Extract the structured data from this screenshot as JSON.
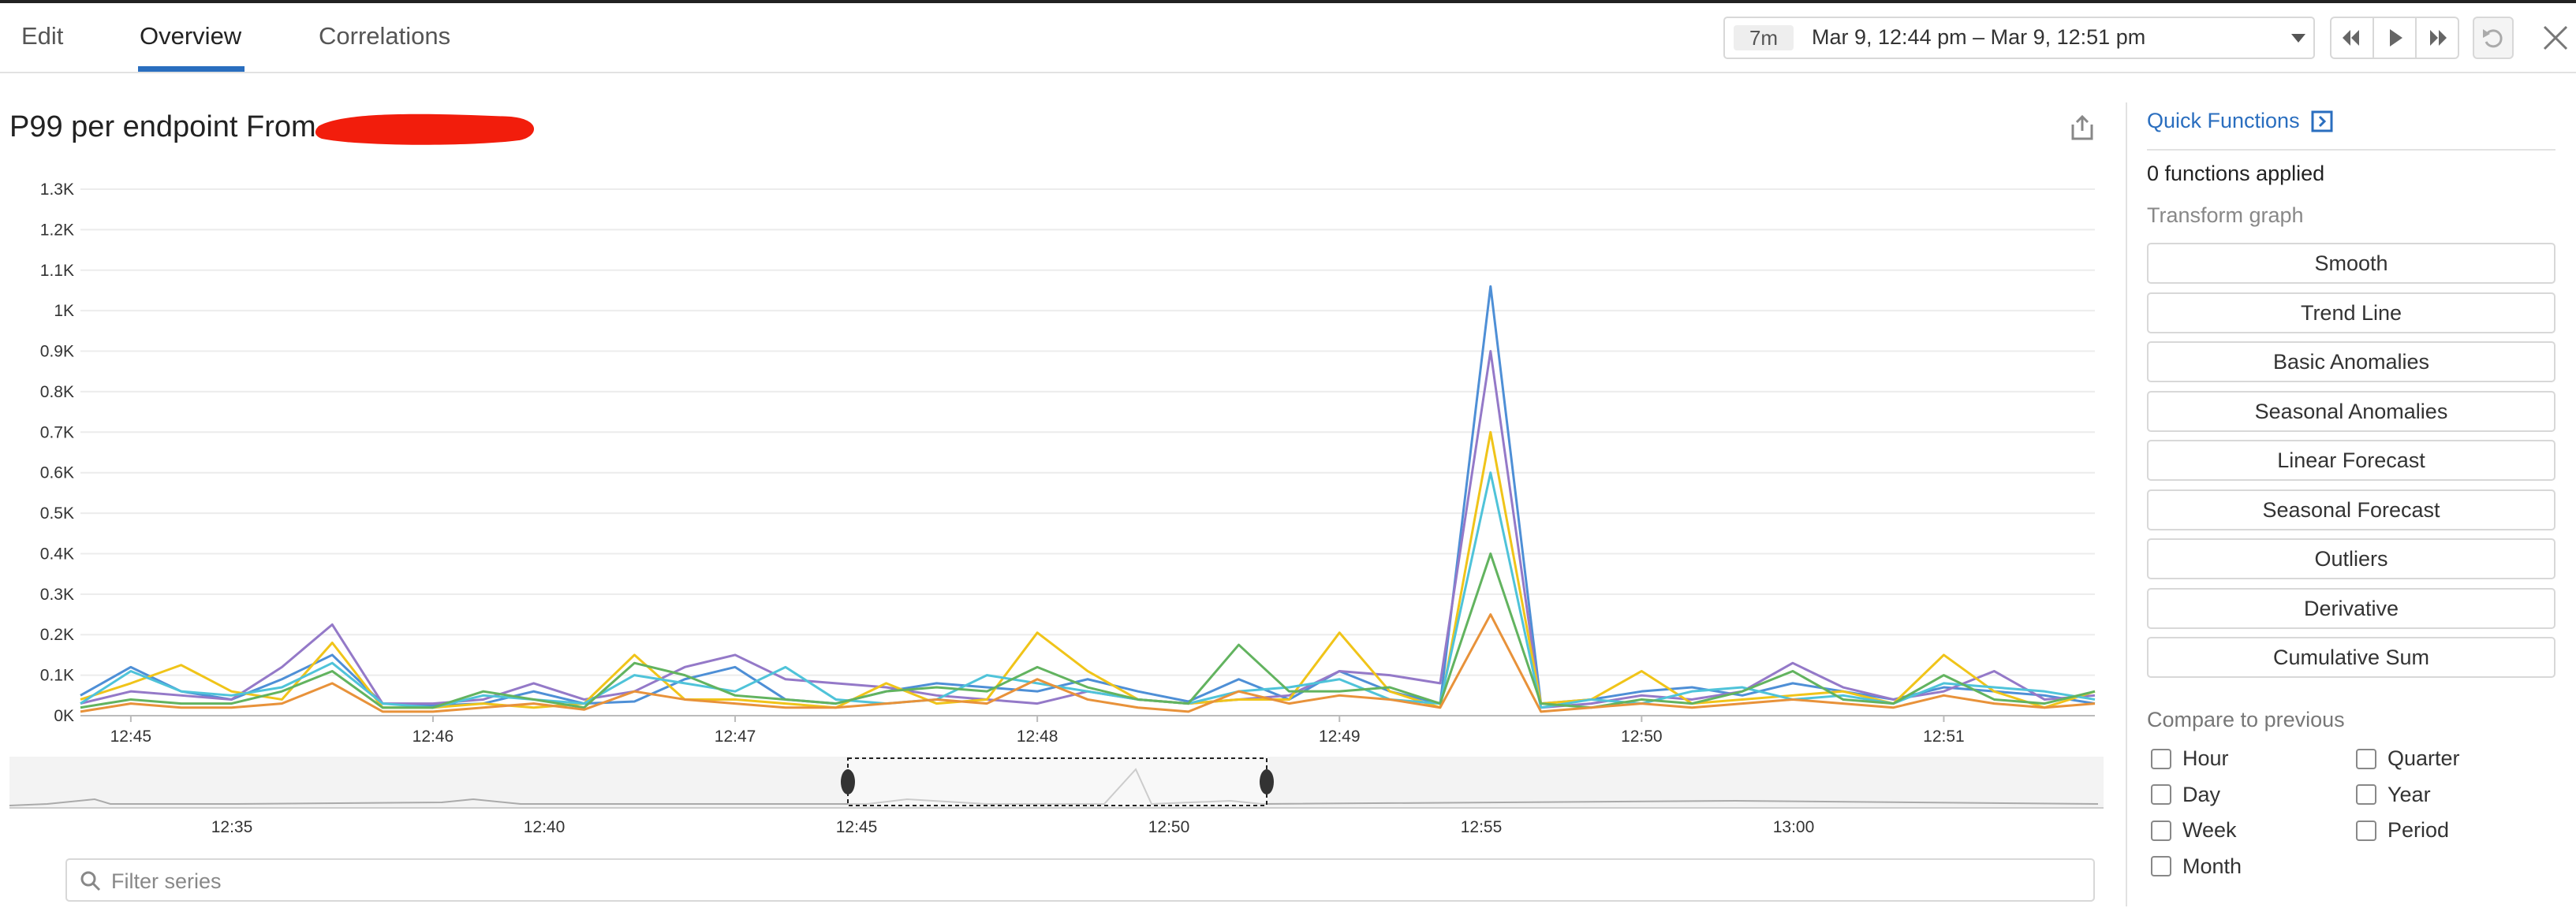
{
  "tabs": [
    "Edit",
    "Overview",
    "Correlations"
  ],
  "time_range": {
    "badge": "7m",
    "text": "Mar 9, 12:44 pm – Mar 9, 12:51 pm"
  },
  "chart_data": {
    "type": "line",
    "title": "P99 per endpoint From",
    "categories": [
      null,
      "12:45",
      null,
      null,
      null,
      null,
      null,
      "12:46",
      null,
      null,
      null,
      null,
      null,
      "12:47",
      null,
      null,
      null,
      null,
      null,
      "12:48",
      null,
      null,
      null,
      null,
      null,
      "12:49",
      null,
      null,
      null,
      null,
      null,
      "12:50",
      null,
      null,
      null,
      null,
      null,
      "12:51",
      null,
      null,
      null
    ],
    "series": [
      {
        "color": "#4e8fd6",
        "values": [
          50,
          120,
          60,
          40,
          90,
          150,
          30,
          25,
          30,
          60,
          30,
          35,
          90,
          120,
          40,
          30,
          60,
          80,
          70,
          60,
          90,
          60,
          35,
          90,
          40,
          110,
          60,
          30,
          1060,
          30,
          40,
          60,
          70,
          50,
          80,
          60,
          40,
          70,
          60,
          50,
          30
        ]
      },
      {
        "color": "#9479c8",
        "values": [
          30,
          60,
          50,
          40,
          120,
          225,
          30,
          30,
          40,
          80,
          40,
          60,
          120,
          150,
          90,
          80,
          70,
          50,
          40,
          30,
          60,
          40,
          30,
          40,
          50,
          110,
          100,
          80,
          900,
          20,
          30,
          50,
          40,
          60,
          130,
          70,
          40,
          60,
          110,
          40,
          50
        ]
      },
      {
        "color": "#f0c419",
        "values": [
          40,
          80,
          125,
          60,
          40,
          180,
          20,
          20,
          30,
          20,
          30,
          150,
          40,
          40,
          30,
          20,
          80,
          30,
          40,
          205,
          110,
          40,
          30,
          40,
          40,
          205,
          60,
          20,
          700,
          30,
          40,
          110,
          30,
          40,
          50,
          60,
          30,
          150,
          60,
          20,
          60
        ]
      },
      {
        "color": "#4fc3d9",
        "values": [
          30,
          110,
          60,
          50,
          70,
          130,
          30,
          20,
          50,
          40,
          30,
          100,
          80,
          60,
          120,
          40,
          30,
          40,
          100,
          80,
          60,
          40,
          30,
          60,
          70,
          90,
          40,
          30,
          600,
          20,
          40,
          30,
          60,
          70,
          40,
          50,
          30,
          80,
          70,
          60,
          40
        ]
      },
      {
        "color": "#62b35f",
        "values": [
          20,
          40,
          30,
          30,
          60,
          110,
          20,
          20,
          60,
          40,
          20,
          130,
          100,
          50,
          40,
          30,
          60,
          70,
          60,
          120,
          70,
          40,
          30,
          175,
          60,
          60,
          70,
          30,
          400,
          30,
          20,
          40,
          30,
          60,
          110,
          40,
          30,
          100,
          40,
          30,
          60
        ]
      },
      {
        "color": "#e8923a",
        "values": [
          10,
          30,
          20,
          20,
          30,
          80,
          10,
          10,
          20,
          30,
          15,
          60,
          40,
          30,
          20,
          20,
          30,
          40,
          30,
          90,
          40,
          20,
          10,
          60,
          30,
          50,
          40,
          20,
          250,
          10,
          20,
          30,
          20,
          30,
          40,
          30,
          20,
          50,
          30,
          20,
          30
        ]
      }
    ],
    "ylim": [
      0,
      1300
    ],
    "yticks": [
      {
        "value": 0,
        "label": "0K"
      },
      {
        "value": 100,
        "label": "0.1K"
      },
      {
        "value": 200,
        "label": "0.2K"
      },
      {
        "value": 300,
        "label": "0.3K"
      },
      {
        "value": 400,
        "label": "0.4K"
      },
      {
        "value": 500,
        "label": "0.5K"
      },
      {
        "value": 600,
        "label": "0.6K"
      },
      {
        "value": 700,
        "label": "0.7K"
      },
      {
        "value": 800,
        "label": "0.8K"
      },
      {
        "value": 900,
        "label": "0.9K"
      },
      {
        "value": 1000,
        "label": "1K"
      },
      {
        "value": 1100,
        "label": "1.1K"
      },
      {
        "value": 1200,
        "label": "1.2K"
      },
      {
        "value": 1300,
        "label": "1.3K"
      }
    ],
    "grid": true
  },
  "navigator": {
    "ticks": [
      "12:35",
      "12:40",
      "12:45",
      "12:50",
      "12:55",
      "13:00"
    ]
  },
  "filter_placeholder": "Filter series",
  "panel": {
    "title": "Quick Functions",
    "status": "0 functions applied",
    "transform_label": "Transform graph",
    "functions": [
      "Smooth",
      "Trend Line",
      "Basic Anomalies",
      "Seasonal Anomalies",
      "Linear Forecast",
      "Seasonal Forecast",
      "Outliers",
      "Derivative",
      "Cumulative Sum"
    ],
    "compare_label": "Compare to previous",
    "compare_options": [
      "Hour",
      "Quarter",
      "Day",
      "Year",
      "Week",
      "Period",
      "Month"
    ]
  }
}
